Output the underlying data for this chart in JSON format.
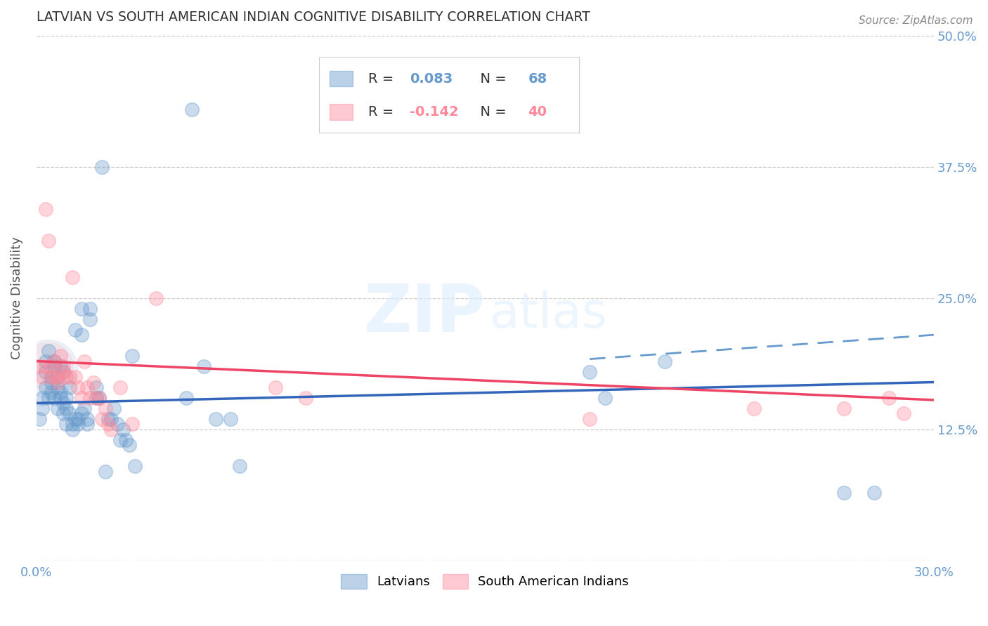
{
  "title": "LATVIAN VS SOUTH AMERICAN INDIAN COGNITIVE DISABILITY CORRELATION CHART",
  "source": "Source: ZipAtlas.com",
  "ylabel": "Cognitive Disability",
  "watermark_zip": "ZIP",
  "watermark_atlas": "atlas",
  "xlim": [
    0.0,
    0.3
  ],
  "ylim": [
    0.0,
    0.5
  ],
  "xticks": [
    0.0,
    0.05,
    0.1,
    0.15,
    0.2,
    0.25,
    0.3
  ],
  "xtick_labels": [
    "0.0%",
    "",
    "",
    "",
    "",
    "",
    "30.0%"
  ],
  "yticks": [
    0.0,
    0.125,
    0.25,
    0.375,
    0.5
  ],
  "ytick_labels": [
    "",
    "12.5%",
    "25.0%",
    "37.5%",
    "50.0%"
  ],
  "latvian_R": "0.083",
  "latvian_N": "68",
  "sam_R": "-0.142",
  "sam_N": "40",
  "latvian_color": "#6699CC",
  "sam_color": "#FF8899",
  "trend_line_latvian": [
    [
      0.0,
      0.15
    ],
    [
      0.3,
      0.17
    ]
  ],
  "trend_line_sam": [
    [
      0.0,
      0.19
    ],
    [
      0.3,
      0.153
    ]
  ],
  "dashed_line": [
    [
      0.185,
      0.192
    ],
    [
      0.3,
      0.215
    ]
  ],
  "latvian_points": [
    [
      0.001,
      0.135
    ],
    [
      0.002,
      0.145
    ],
    [
      0.002,
      0.155
    ],
    [
      0.003,
      0.18
    ],
    [
      0.003,
      0.165
    ],
    [
      0.003,
      0.19
    ],
    [
      0.004,
      0.2
    ],
    [
      0.004,
      0.155
    ],
    [
      0.005,
      0.17
    ],
    [
      0.005,
      0.16
    ],
    [
      0.005,
      0.175
    ],
    [
      0.006,
      0.185
    ],
    [
      0.006,
      0.19
    ],
    [
      0.006,
      0.155
    ],
    [
      0.007,
      0.145
    ],
    [
      0.007,
      0.175
    ],
    [
      0.007,
      0.165
    ],
    [
      0.008,
      0.185
    ],
    [
      0.008,
      0.155
    ],
    [
      0.008,
      0.16
    ],
    [
      0.009,
      0.18
    ],
    [
      0.009,
      0.15
    ],
    [
      0.009,
      0.14
    ],
    [
      0.01,
      0.145
    ],
    [
      0.01,
      0.155
    ],
    [
      0.01,
      0.13
    ],
    [
      0.011,
      0.165
    ],
    [
      0.011,
      0.14
    ],
    [
      0.012,
      0.125
    ],
    [
      0.012,
      0.13
    ],
    [
      0.013,
      0.22
    ],
    [
      0.013,
      0.135
    ],
    [
      0.014,
      0.135
    ],
    [
      0.014,
      0.13
    ],
    [
      0.015,
      0.24
    ],
    [
      0.015,
      0.215
    ],
    [
      0.015,
      0.14
    ],
    [
      0.016,
      0.145
    ],
    [
      0.017,
      0.135
    ],
    [
      0.017,
      0.13
    ],
    [
      0.018,
      0.23
    ],
    [
      0.018,
      0.24
    ],
    [
      0.02,
      0.165
    ],
    [
      0.02,
      0.155
    ],
    [
      0.021,
      0.155
    ],
    [
      0.022,
      0.375
    ],
    [
      0.023,
      0.085
    ],
    [
      0.024,
      0.135
    ],
    [
      0.025,
      0.135
    ],
    [
      0.026,
      0.145
    ],
    [
      0.027,
      0.13
    ],
    [
      0.028,
      0.115
    ],
    [
      0.029,
      0.125
    ],
    [
      0.03,
      0.115
    ],
    [
      0.031,
      0.11
    ],
    [
      0.032,
      0.195
    ],
    [
      0.033,
      0.09
    ],
    [
      0.05,
      0.155
    ],
    [
      0.052,
      0.43
    ],
    [
      0.056,
      0.185
    ],
    [
      0.06,
      0.135
    ],
    [
      0.065,
      0.135
    ],
    [
      0.068,
      0.09
    ],
    [
      0.185,
      0.18
    ],
    [
      0.19,
      0.155
    ],
    [
      0.21,
      0.19
    ],
    [
      0.27,
      0.065
    ],
    [
      0.28,
      0.065
    ]
  ],
  "sam_points": [
    [
      0.001,
      0.185
    ],
    [
      0.002,
      0.175
    ],
    [
      0.003,
      0.185
    ],
    [
      0.003,
      0.335
    ],
    [
      0.004,
      0.305
    ],
    [
      0.005,
      0.175
    ],
    [
      0.005,
      0.185
    ],
    [
      0.006,
      0.19
    ],
    [
      0.006,
      0.175
    ],
    [
      0.007,
      0.17
    ],
    [
      0.007,
      0.175
    ],
    [
      0.008,
      0.195
    ],
    [
      0.009,
      0.185
    ],
    [
      0.009,
      0.18
    ],
    [
      0.01,
      0.175
    ],
    [
      0.011,
      0.175
    ],
    [
      0.012,
      0.27
    ],
    [
      0.013,
      0.175
    ],
    [
      0.014,
      0.165
    ],
    [
      0.015,
      0.155
    ],
    [
      0.016,
      0.19
    ],
    [
      0.017,
      0.165
    ],
    [
      0.018,
      0.155
    ],
    [
      0.019,
      0.17
    ],
    [
      0.02,
      0.155
    ],
    [
      0.021,
      0.155
    ],
    [
      0.022,
      0.135
    ],
    [
      0.023,
      0.145
    ],
    [
      0.024,
      0.13
    ],
    [
      0.025,
      0.125
    ],
    [
      0.028,
      0.165
    ],
    [
      0.032,
      0.13
    ],
    [
      0.04,
      0.25
    ],
    [
      0.08,
      0.165
    ],
    [
      0.09,
      0.155
    ],
    [
      0.185,
      0.135
    ],
    [
      0.24,
      0.145
    ],
    [
      0.27,
      0.145
    ],
    [
      0.285,
      0.155
    ],
    [
      0.29,
      0.14
    ]
  ],
  "background_color": "#FFFFFF",
  "grid_color": "#CCCCCC",
  "title_color": "#333333",
  "tick_color": "#6699CC"
}
